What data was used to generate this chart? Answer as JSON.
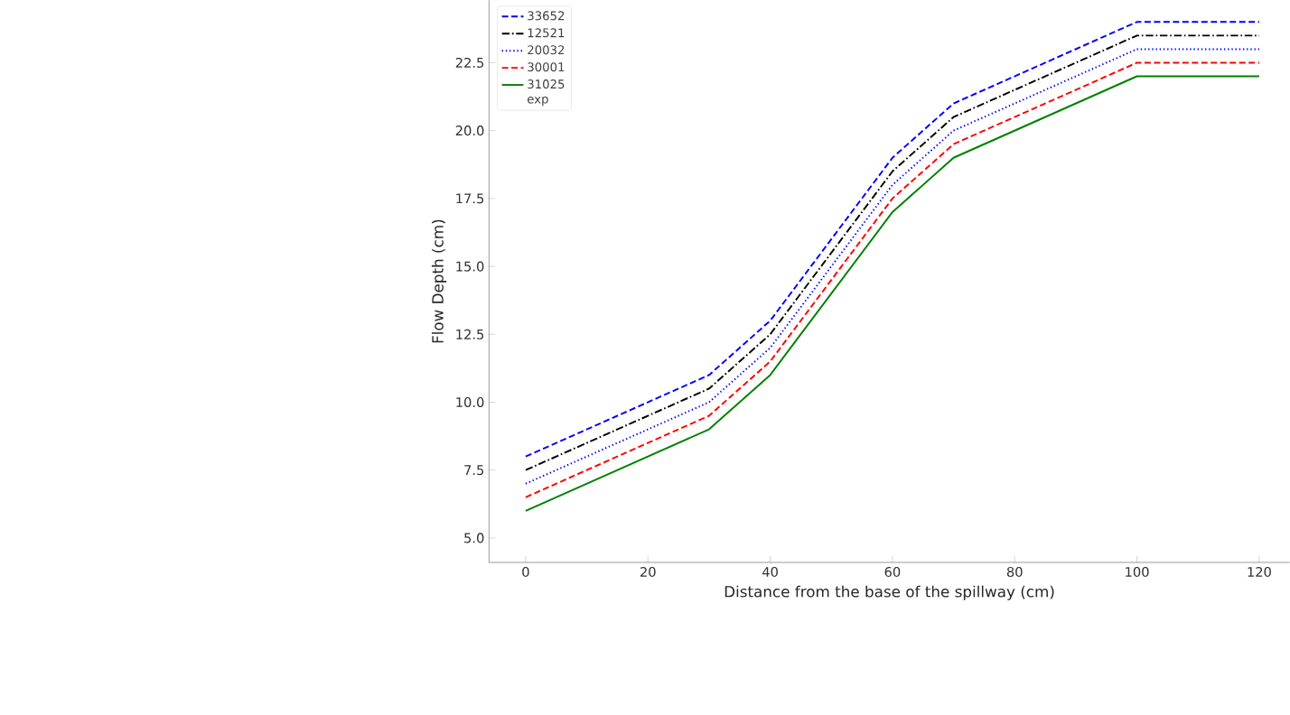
{
  "chart_data": {
    "type": "line",
    "xlabel": "Distance from the base of the spillway (cm)",
    "ylabel": "Flow Depth (cm)",
    "x": [
      0,
      30,
      40,
      60,
      70,
      100,
      120
    ],
    "series": [
      {
        "name": "33652",
        "color": "#0000ff",
        "line_style": "dashed",
        "values": [
          8,
          11,
          13,
          19,
          21,
          24,
          24
        ]
      },
      {
        "name": "12521",
        "color": "#000000",
        "line_style": "dashdot",
        "values": [
          7.5,
          10.5,
          12.5,
          18.5,
          20.5,
          23.5,
          23.5
        ]
      },
      {
        "name": "20032",
        "color": "#0000ff",
        "line_style": "dotted",
        "values": [
          7,
          10,
          12,
          18,
          20,
          23,
          23
        ]
      },
      {
        "name": "30001",
        "color": "#ff0000",
        "line_style": "dashed",
        "values": [
          6.5,
          9.5,
          11.5,
          17.5,
          19.5,
          22.5,
          22.5
        ]
      },
      {
        "name": "31025",
        "color": "#008000",
        "line_style": "solid",
        "values": [
          6,
          9,
          11,
          17,
          19,
          22,
          22
        ]
      },
      {
        "name": "exp",
        "values": [
          null,
          null,
          null,
          null,
          null,
          null,
          null
        ]
      }
    ],
    "xlim": [
      -6,
      125
    ],
    "ylim": [
      4.1,
      24.8
    ],
    "xticks": [
      0,
      20,
      40,
      60,
      80,
      100,
      120
    ],
    "yticks": [
      {
        "value": 5,
        "label": "5.0"
      },
      {
        "value": 7.5,
        "label": "7.5"
      },
      {
        "value": 10,
        "label": "10.0"
      },
      {
        "value": 12.5,
        "label": "12.5"
      },
      {
        "value": 15,
        "label": "15.0"
      },
      {
        "value": 17.5,
        "label": "17.5"
      },
      {
        "value": 20,
        "label": "20.0"
      },
      {
        "value": 22.5,
        "label": "22.5"
      }
    ],
    "legend": "top left",
    "grid": false
  }
}
